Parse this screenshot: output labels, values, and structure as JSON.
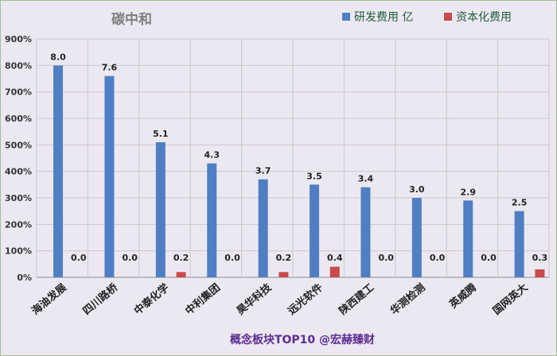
{
  "chart_data": {
    "type": "bar",
    "title": "碳中和",
    "categories": [
      "海油发展",
      "四川路桥",
      "中泰化学",
      "中利集团",
      "昊华科技",
      "远光软件",
      "陕西建工",
      "华测检测",
      "英威腾",
      "国网英大"
    ],
    "series": [
      {
        "name": "研发费用 亿",
        "values": [
          8.0,
          7.6,
          5.1,
          4.3,
          3.7,
          3.5,
          3.4,
          3.0,
          2.9,
          2.5
        ],
        "labels": [
          "8.0",
          "7.6",
          "5.1",
          "4.3",
          "3.7",
          "3.5",
          "3.4",
          "3.0",
          "2.9",
          "2.5"
        ],
        "color": "#4f7fc3"
      },
      {
        "name": "资本化费用",
        "values": [
          0.0,
          0.0,
          0.2,
          0.0,
          0.2,
          0.4,
          0.0,
          0.0,
          0.0,
          0.3
        ],
        "labels": [
          "0.0",
          "0.0",
          "0.2",
          "0.0",
          "0.2",
          "0.4",
          "0.0",
          "0.0",
          "0.0",
          "0.3"
        ],
        "color": "#c94a4a"
      }
    ],
    "yticks": [
      "0%",
      "100%",
      "200%",
      "300%",
      "400%",
      "500%",
      "600%",
      "700%",
      "800%",
      "900%"
    ],
    "ylim": [
      0,
      9
    ],
    "grid": true,
    "legend": "top-right",
    "xlabel": "",
    "ylabel": ""
  },
  "footer": "概念板块TOP10  @宏赫臻财"
}
